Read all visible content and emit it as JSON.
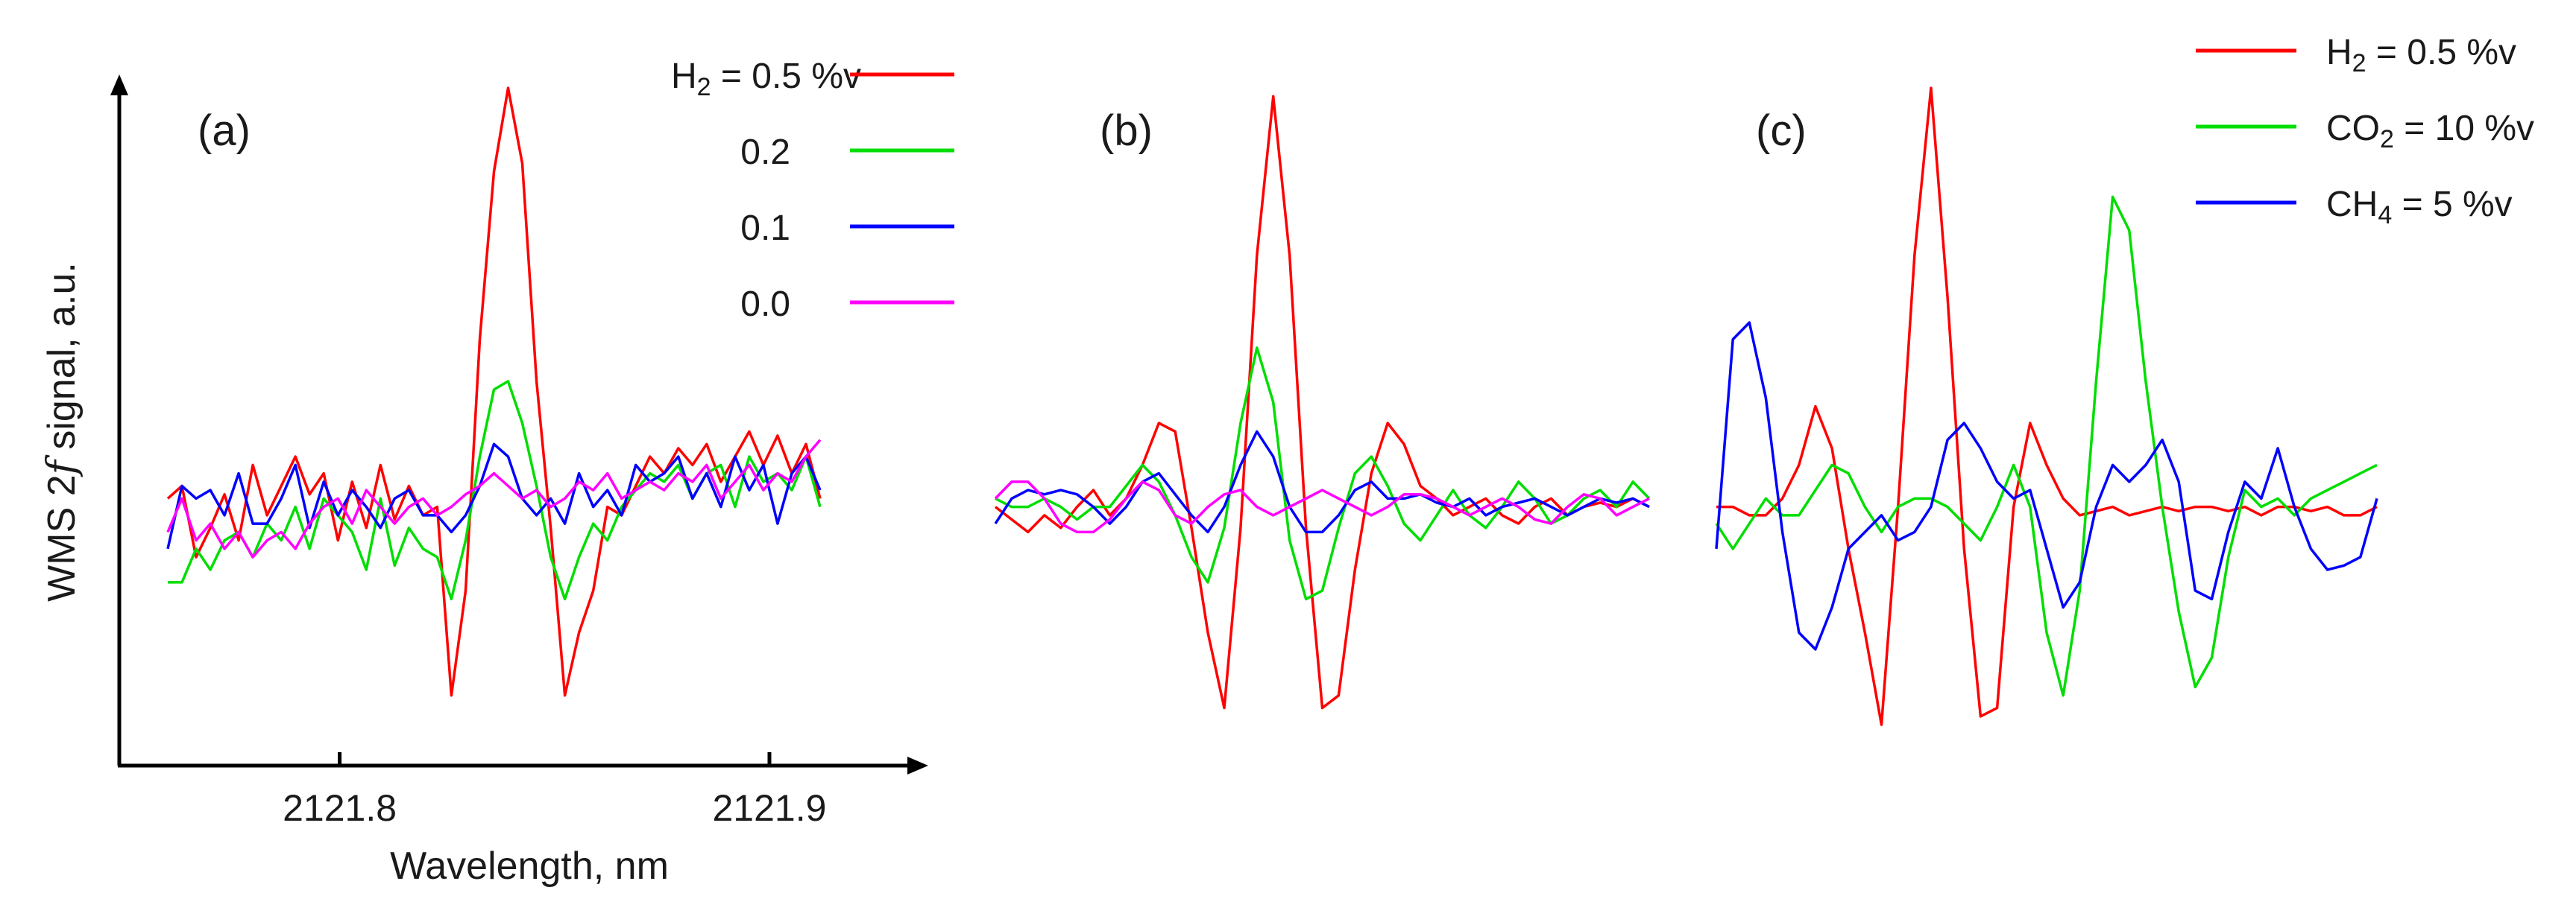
{
  "chart_data": [
    {
      "panel_label": "(a)",
      "type": "line",
      "xlabel": "Wavelength, nm",
      "ylabel_parts": [
        "WMS 2",
        "f",
        " signal, a.u."
      ],
      "x_ticks": [
        "2121.8",
        "2121.9"
      ],
      "xlim": [
        2121.745,
        2121.935
      ],
      "ylim": [
        -0.55,
        1.05
      ],
      "x": [
        2121.76,
        2121.7633,
        2121.7666,
        2121.7699,
        2121.7732,
        2121.7765,
        2121.7798,
        2121.7831,
        2121.7864,
        2121.7897,
        2121.793,
        2121.7963,
        2121.7996,
        2121.8029,
        2121.8062,
        2121.8095,
        2121.8128,
        2121.8161,
        2121.8194,
        2121.8227,
        2121.826,
        2121.8293,
        2121.8326,
        2121.8359,
        2121.8392,
        2121.8425,
        2121.8458,
        2121.8491,
        2121.8524,
        2121.8557,
        2121.859,
        2121.8623,
        2121.8656,
        2121.8689,
        2121.8722,
        2121.8755,
        2121.8788,
        2121.8821,
        2121.8854,
        2121.8887,
        2121.892,
        2121.8953,
        2121.8986,
        2121.9019,
        2121.9052,
        2121.9085,
        2121.9118
      ],
      "legend": [
        {
          "label_prefix": "H",
          "label_sub": "2",
          "label_suffix": " = 0.5 %v",
          "color": "#ff0000"
        },
        {
          "label": "0.2",
          "color": "#00dd00"
        },
        {
          "label": "0.1",
          "color": "#0000ff"
        },
        {
          "label": "0.0",
          "color": "#ff00ff"
        }
      ],
      "series": [
        {
          "color": "#ff0000",
          "values": [
            0.02,
            0.05,
            -0.12,
            -0.05,
            0.03,
            -0.08,
            0.1,
            -0.02,
            0.05,
            0.12,
            0.03,
            0.08,
            -0.08,
            0.06,
            -0.05,
            0.1,
            -0.03,
            0.05,
            -0.02,
            0.0,
            -0.45,
            -0.2,
            0.4,
            0.8,
            1.0,
            0.82,
            0.3,
            -0.05,
            -0.45,
            -0.3,
            -0.2,
            0.0,
            -0.02,
            0.05,
            0.12,
            0.08,
            0.14,
            0.1,
            0.15,
            0.06,
            0.12,
            0.18,
            0.1,
            0.17,
            0.08,
            0.15,
            0.02
          ]
        },
        {
          "color": "#00dd00",
          "values": [
            -0.18,
            -0.18,
            -0.1,
            -0.15,
            -0.08,
            -0.06,
            -0.12,
            -0.04,
            -0.08,
            0.0,
            -0.1,
            0.02,
            -0.02,
            -0.06,
            -0.15,
            0.02,
            -0.14,
            -0.05,
            -0.1,
            -0.12,
            -0.22,
            -0.08,
            0.12,
            0.28,
            0.3,
            0.2,
            0.05,
            -0.12,
            -0.22,
            -0.12,
            -0.04,
            -0.08,
            0.0,
            0.04,
            0.08,
            0.06,
            0.1,
            0.02,
            0.08,
            0.1,
            0.0,
            0.12,
            0.06,
            0.08,
            0.04,
            0.12,
            0.0
          ]
        },
        {
          "color": "#0000ff",
          "values": [
            -0.1,
            0.05,
            0.02,
            0.04,
            -0.02,
            0.08,
            -0.04,
            -0.04,
            0.02,
            0.1,
            -0.05,
            0.06,
            -0.02,
            0.04,
            0.0,
            -0.05,
            0.02,
            0.04,
            -0.02,
            -0.02,
            -0.06,
            -0.02,
            0.05,
            0.15,
            0.12,
            0.02,
            -0.02,
            0.02,
            -0.04,
            0.08,
            0.0,
            0.04,
            -0.02,
            0.1,
            0.06,
            0.08,
            0.12,
            0.02,
            0.08,
            0.0,
            0.12,
            0.04,
            0.1,
            -0.04,
            0.08,
            0.12,
            0.04
          ]
        },
        {
          "color": "#ff00ff",
          "values": [
            -0.06,
            0.02,
            -0.08,
            -0.04,
            -0.1,
            -0.06,
            -0.12,
            -0.08,
            -0.06,
            -0.1,
            -0.04,
            0.0,
            0.02,
            -0.04,
            0.04,
            0.0,
            -0.04,
            0.0,
            0.02,
            -0.02,
            0.0,
            0.03,
            0.05,
            0.08,
            0.05,
            0.02,
            0.04,
            0.0,
            0.02,
            0.06,
            0.04,
            0.08,
            0.02,
            0.04,
            0.06,
            0.04,
            0.08,
            0.06,
            0.1,
            0.02,
            0.06,
            0.1,
            0.04,
            0.08,
            0.06,
            0.12,
            0.16
          ]
        }
      ]
    },
    {
      "panel_label": "(b)",
      "type": "line",
      "x": [
        0,
        1,
        2,
        3,
        4,
        5,
        6,
        7,
        8,
        9,
        10,
        11,
        12,
        13,
        14,
        15,
        16,
        17,
        18,
        19,
        20,
        21,
        22,
        23,
        24,
        25,
        26,
        27,
        28,
        29,
        30,
        31,
        32,
        33,
        34,
        35,
        36,
        37,
        38,
        39,
        40
      ],
      "ylim": [
        -0.55,
        1.05
      ],
      "series": [
        {
          "color": "#ff0000",
          "values": [
            0.0,
            -0.03,
            -0.06,
            -0.02,
            -0.05,
            0.0,
            0.04,
            -0.02,
            0.02,
            0.1,
            0.2,
            0.18,
            -0.05,
            -0.3,
            -0.48,
            -0.05,
            0.6,
            0.98,
            0.6,
            -0.05,
            -0.48,
            -0.45,
            -0.15,
            0.08,
            0.2,
            0.15,
            0.05,
            0.02,
            -0.02,
            0.0,
            0.02,
            -0.02,
            -0.04,
            0.0,
            0.02,
            -0.02,
            0.0,
            0.01,
            0.0,
            0.02,
            0.0
          ]
        },
        {
          "color": "#00dd00",
          "values": [
            0.02,
            0.0,
            0.0,
            0.02,
            0.0,
            -0.03,
            0.0,
            0.0,
            0.05,
            0.1,
            0.06,
            -0.02,
            -0.12,
            -0.18,
            -0.05,
            0.2,
            0.38,
            0.25,
            -0.08,
            -0.22,
            -0.2,
            -0.05,
            0.08,
            0.12,
            0.05,
            -0.04,
            -0.08,
            -0.02,
            0.04,
            -0.02,
            -0.05,
            0.0,
            0.06,
            0.02,
            -0.04,
            -0.02,
            0.02,
            0.04,
            0.0,
            0.06,
            0.02
          ]
        },
        {
          "color": "#0000ff",
          "values": [
            -0.04,
            0.02,
            0.04,
            0.03,
            0.04,
            0.03,
            0.0,
            -0.04,
            0.0,
            0.06,
            0.08,
            0.03,
            -0.02,
            -0.06,
            0.0,
            0.1,
            0.18,
            0.12,
            0.0,
            -0.06,
            -0.06,
            -0.02,
            0.04,
            0.06,
            0.02,
            0.02,
            0.03,
            0.01,
            0.0,
            0.02,
            -0.02,
            0.0,
            0.01,
            0.02,
            0.0,
            -0.02,
            0.0,
            0.02,
            0.01,
            0.02,
            0.0
          ]
        },
        {
          "color": "#ff00ff",
          "values": [
            0.02,
            0.06,
            0.06,
            0.02,
            -0.04,
            -0.06,
            -0.06,
            -0.03,
            0.02,
            0.06,
            0.04,
            -0.02,
            -0.04,
            0.0,
            0.03,
            0.04,
            0.0,
            -0.02,
            0.0,
            0.02,
            0.04,
            0.02,
            0.0,
            -0.02,
            0.0,
            0.03,
            0.03,
            0.02,
            0.0,
            -0.02,
            0.0,
            0.02,
            0.0,
            -0.03,
            -0.04,
            0.0,
            0.03,
            0.02,
            -0.02,
            0.0,
            0.02
          ]
        }
      ]
    },
    {
      "panel_label": "(c)",
      "type": "line",
      "x": [
        0,
        1,
        2,
        3,
        4,
        5,
        6,
        7,
        8,
        9,
        10,
        11,
        12,
        13,
        14,
        15,
        16,
        17,
        18,
        19,
        20,
        21,
        22,
        23,
        24,
        25,
        26,
        27,
        28,
        29,
        30,
        31,
        32,
        33,
        34,
        35,
        36,
        37,
        38,
        39,
        40
      ],
      "ylim": [
        -0.55,
        1.05
      ],
      "legend": [
        {
          "label_prefix": "H",
          "label_sub": "2",
          "label_suffix": " = 0.5 %v",
          "color": "#ff0000"
        },
        {
          "label_prefix": "CO",
          "label_sub": "2",
          "label_suffix": " = 10 %v",
          "color": "#00dd00"
        },
        {
          "label_prefix": "CH",
          "label_sub": "4",
          "label_suffix": " = 5 %v",
          "color": "#0000ff"
        }
      ],
      "series": [
        {
          "color": "#ff0000",
          "values": [
            0.0,
            0.0,
            -0.02,
            -0.02,
            0.02,
            0.1,
            0.24,
            0.14,
            -0.1,
            -0.3,
            -0.52,
            0.0,
            0.6,
            1.0,
            0.5,
            -0.1,
            -0.5,
            -0.48,
            0.0,
            0.2,
            0.1,
            0.02,
            -0.02,
            -0.01,
            0.0,
            -0.02,
            -0.01,
            0.0,
            -0.01,
            0.0,
            0.0,
            -0.01,
            0.0,
            -0.02,
            0.0,
            0.0,
            -0.01,
            0.0,
            -0.02,
            -0.02,
            0.0
          ]
        },
        {
          "color": "#00dd00",
          "values": [
            -0.04,
            -0.1,
            -0.04,
            0.02,
            -0.02,
            -0.02,
            0.04,
            0.1,
            0.08,
            0.0,
            -0.06,
            0.0,
            0.02,
            0.02,
            0.0,
            -0.04,
            -0.08,
            0.0,
            0.1,
            0.0,
            -0.3,
            -0.45,
            -0.2,
            0.3,
            0.74,
            0.66,
            0.3,
            0.0,
            -0.25,
            -0.43,
            -0.36,
            -0.12,
            0.04,
            0.0,
            0.02,
            -0.02,
            0.02,
            0.04,
            0.06,
            0.08,
            0.1
          ]
        },
        {
          "color": "#0000ff",
          "values": [
            -0.1,
            0.4,
            0.44,
            0.26,
            -0.06,
            -0.3,
            -0.34,
            -0.24,
            -0.1,
            -0.06,
            -0.02,
            -0.08,
            -0.06,
            0.0,
            0.16,
            0.2,
            0.14,
            0.06,
            0.02,
            0.04,
            -0.1,
            -0.24,
            -0.18,
            0.0,
            0.1,
            0.06,
            0.1,
            0.16,
            0.06,
            -0.2,
            -0.22,
            -0.06,
            0.06,
            0.02,
            0.14,
            0.0,
            -0.1,
            -0.15,
            -0.14,
            -0.12,
            0.02
          ]
        }
      ]
    }
  ]
}
